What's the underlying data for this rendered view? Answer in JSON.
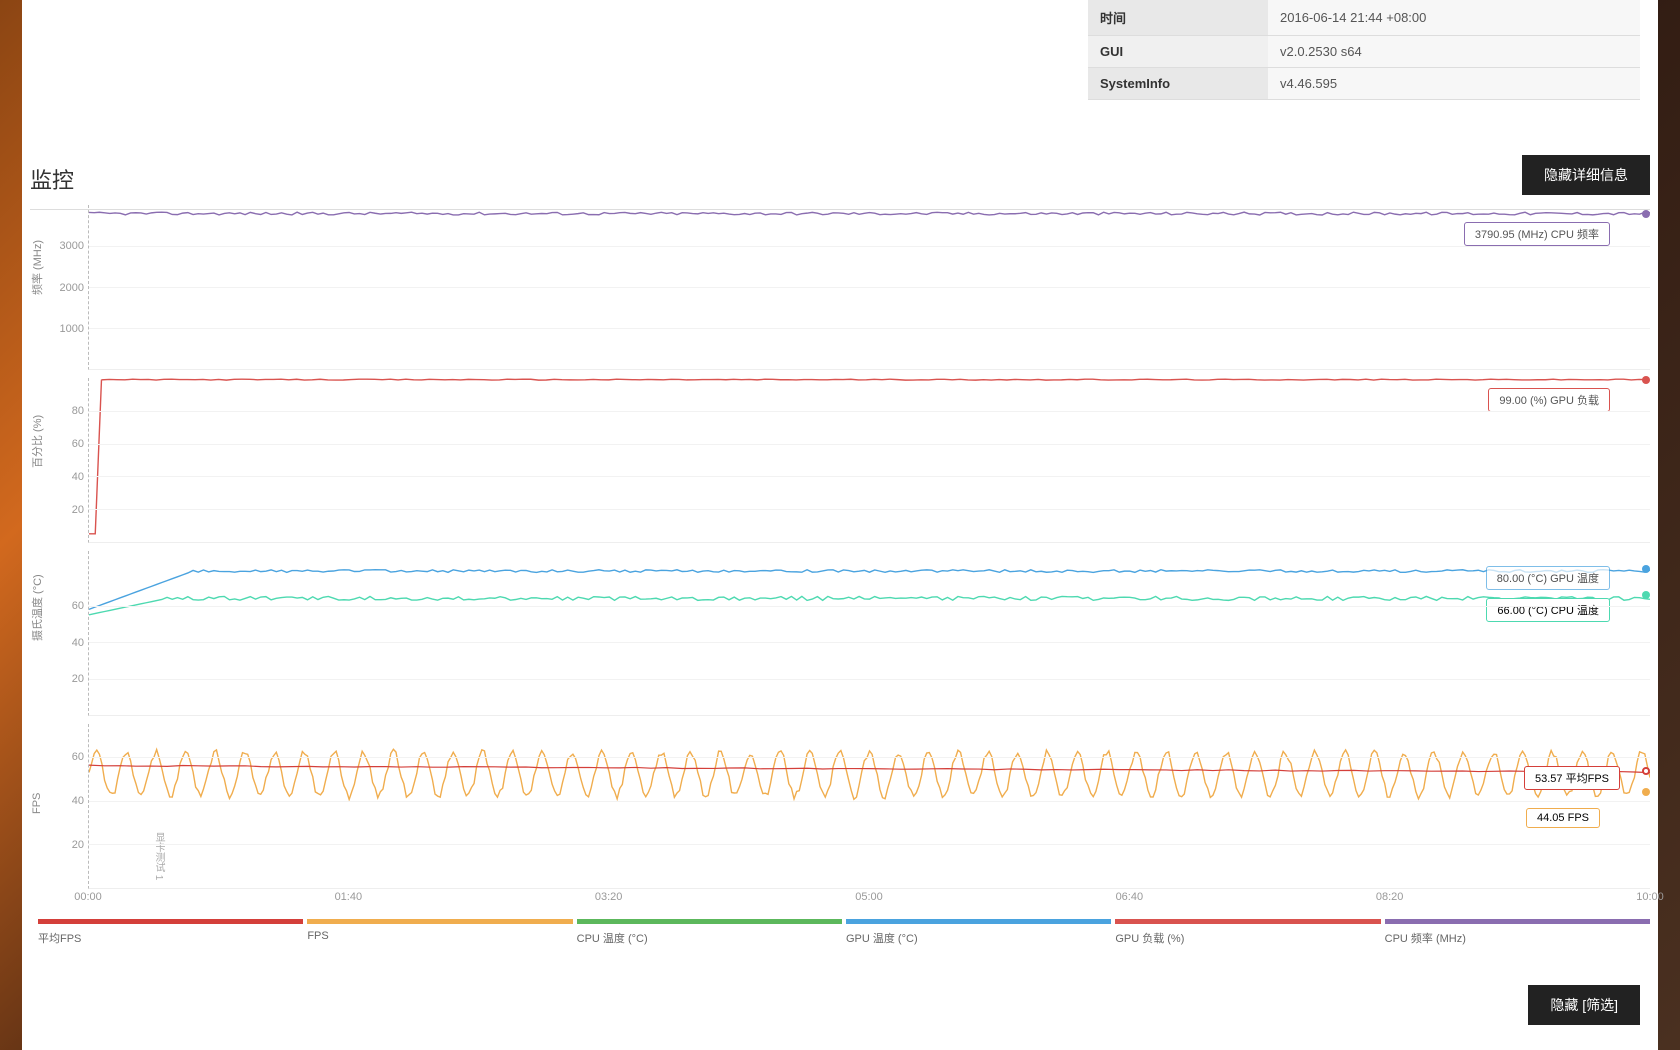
{
  "info_rows": [
    {
      "label": "时间",
      "value": "2016-06-14 21:44 +08:00"
    },
    {
      "label": "GUI",
      "value": "v2.0.2530 s64"
    },
    {
      "label": "SystemInfo",
      "value": "v4.46.595"
    }
  ],
  "section_title": "监控",
  "hide_details_btn": "隐藏详细信息",
  "hide_filter_btn": "隐藏 [筛选]",
  "x_ticks": [
    "00:00",
    "01:40",
    "03:20",
    "05:00",
    "06:40",
    "08:20",
    "10:00"
  ],
  "colors": {
    "avg_fps": "#d43f3a",
    "fps": "#f0ad4e",
    "cpu_temp": "#5cb85c",
    "gpu_temp": "#4aa3df",
    "gpu_load": "#d9534f",
    "cpu_freq": "#8a6db0",
    "cpu_temp_line": "#4dd9b0",
    "grid": "#f2f2f2"
  },
  "legend": [
    {
      "label": "平均FPS",
      "color_key": "avg_fps"
    },
    {
      "label": "FPS",
      "color_key": "fps"
    },
    {
      "label": "CPU 温度 (°C)",
      "color_key": "cpu_temp"
    },
    {
      "label": "GPU 温度 (°C)",
      "color_key": "gpu_temp"
    },
    {
      "label": "GPU 负载 (%)",
      "color_key": "gpu_load"
    },
    {
      "label": "CPU 频率 (MHz)",
      "color_key": "cpu_freq"
    }
  ],
  "chart1": {
    "ylabel": "频率 (MHz)",
    "ylim": [
      0,
      4000
    ],
    "yticks": [
      1000,
      2000,
      3000
    ],
    "badge": "3790.95 (MHz) CPU 频率",
    "badge_value": 3790.95,
    "badge_color": "#8a6db0",
    "series_mean": 3791,
    "series_jitter": 35
  },
  "chart2": {
    "ylabel": "百分比 (%)",
    "ylim": [
      0,
      100
    ],
    "yticks": [
      20,
      40,
      60,
      80
    ],
    "badge": "99.00 (%) GPU 负载",
    "badge_value": 99.0,
    "badge_color": "#d9534f",
    "series_mean": 99,
    "series_start": 5
  },
  "chart3": {
    "ylabel": "摄氏温度 (°C)",
    "ylim": [
      0,
      90
    ],
    "yticks": [
      20,
      40,
      60
    ],
    "badges": [
      {
        "text": "80.00 (°C) GPU 温度",
        "value": 80.0,
        "color": "#4aa3df"
      },
      {
        "text": "66.00 (°C) CPU 温度",
        "value": 66.0,
        "color": "#4dd9b0"
      }
    ],
    "gpu_mean": 79,
    "gpu_start": 58,
    "cpu_mean": 64,
    "cpu_start": 55
  },
  "chart4": {
    "ylabel": "FPS",
    "ylim": [
      0,
      75
    ],
    "yticks": [
      20,
      40,
      60
    ],
    "vtext": "显卡测试 1",
    "badges": [
      {
        "text": "53.57 平均FPS",
        "value": 53.57,
        "color": "#d43f3a",
        "hollow": true
      },
      {
        "text": "44.05 FPS",
        "value": 44.05,
        "color": "#f0ad4e"
      }
    ],
    "avg_mean": 53.5,
    "fps_mean": 52,
    "fps_amp": 10
  }
}
